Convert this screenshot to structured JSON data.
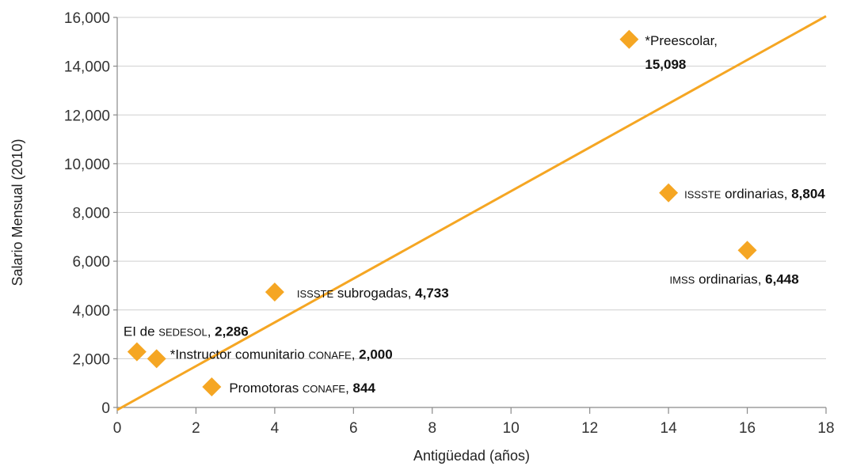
{
  "chart_data": {
    "type": "scatter",
    "xlabel": "Antigüedad (años)",
    "ylabel": "Salario Mensual (2010)",
    "xlim": [
      0,
      18
    ],
    "ylim": [
      0,
      16000
    ],
    "x_ticks": [
      0,
      2,
      4,
      6,
      8,
      10,
      12,
      14,
      16,
      18
    ],
    "y_ticks": [
      0,
      2000,
      4000,
      6000,
      8000,
      10000,
      12000,
      14000,
      16000
    ],
    "x_tick_labels": [
      "0",
      "2",
      "4",
      "6",
      "8",
      "10",
      "12",
      "14",
      "16",
      "18"
    ],
    "y_tick_labels": [
      "0",
      "2,000",
      "4,000",
      "6,000",
      "8,000",
      "10,000",
      "12,000",
      "14,000",
      "16,000"
    ],
    "grid": "horizontal",
    "marker_color": "#f5a623",
    "trendline_color": "#f5a623",
    "trendline": {
      "x": [
        0,
        18
      ],
      "y": [
        -100,
        16050
      ]
    },
    "points": [
      {
        "id": "preescolar",
        "x": 13.0,
        "y": 15098,
        "label_parts": [
          {
            "text": "*Preescolar,",
            "sc": false
          }
        ],
        "value_label": "15,098"
      },
      {
        "id": "issste-ordinarias",
        "x": 14.0,
        "y": 8804,
        "label_parts": [
          {
            "text": "ISSSTE",
            "sc": true
          },
          {
            "text": " ordinarias, ",
            "sc": false
          }
        ],
        "value_label": "8,804"
      },
      {
        "id": "imss-ordinarias",
        "x": 16.0,
        "y": 6448,
        "label_parts": [
          {
            "text": "IMSS",
            "sc": true
          },
          {
            "text": " ordinarias, ",
            "sc": false
          }
        ],
        "value_label": "6,448"
      },
      {
        "id": "issste-subrogadas",
        "x": 4.0,
        "y": 4733,
        "label_parts": [
          {
            "text": "ISSSTE",
            "sc": true
          },
          {
            "text": " subrogadas, ",
            "sc": false
          }
        ],
        "value_label": "4,733"
      },
      {
        "id": "ei-sedesol",
        "x": 0.5,
        "y": 2286,
        "label_parts": [
          {
            "text": "EI de ",
            "sc": false
          },
          {
            "text": "SEDESOL",
            "sc": true
          },
          {
            "text": ", ",
            "sc": false
          }
        ],
        "value_label": "2,286"
      },
      {
        "id": "instructor-conafe",
        "x": 1.0,
        "y": 2000,
        "label_parts": [
          {
            "text": "*Instructor comunitario ",
            "sc": false
          },
          {
            "text": "CONAFE",
            "sc": true
          },
          {
            "text": ", ",
            "sc": false
          }
        ],
        "value_label": "2,000"
      },
      {
        "id": "promotoras-conafe",
        "x": 2.4,
        "y": 844,
        "label_parts": [
          {
            "text": "Promotoras ",
            "sc": false
          },
          {
            "text": "CONAFE",
            "sc": true
          },
          {
            "text": ", ",
            "sc": false
          }
        ],
        "value_label": "844"
      }
    ]
  }
}
